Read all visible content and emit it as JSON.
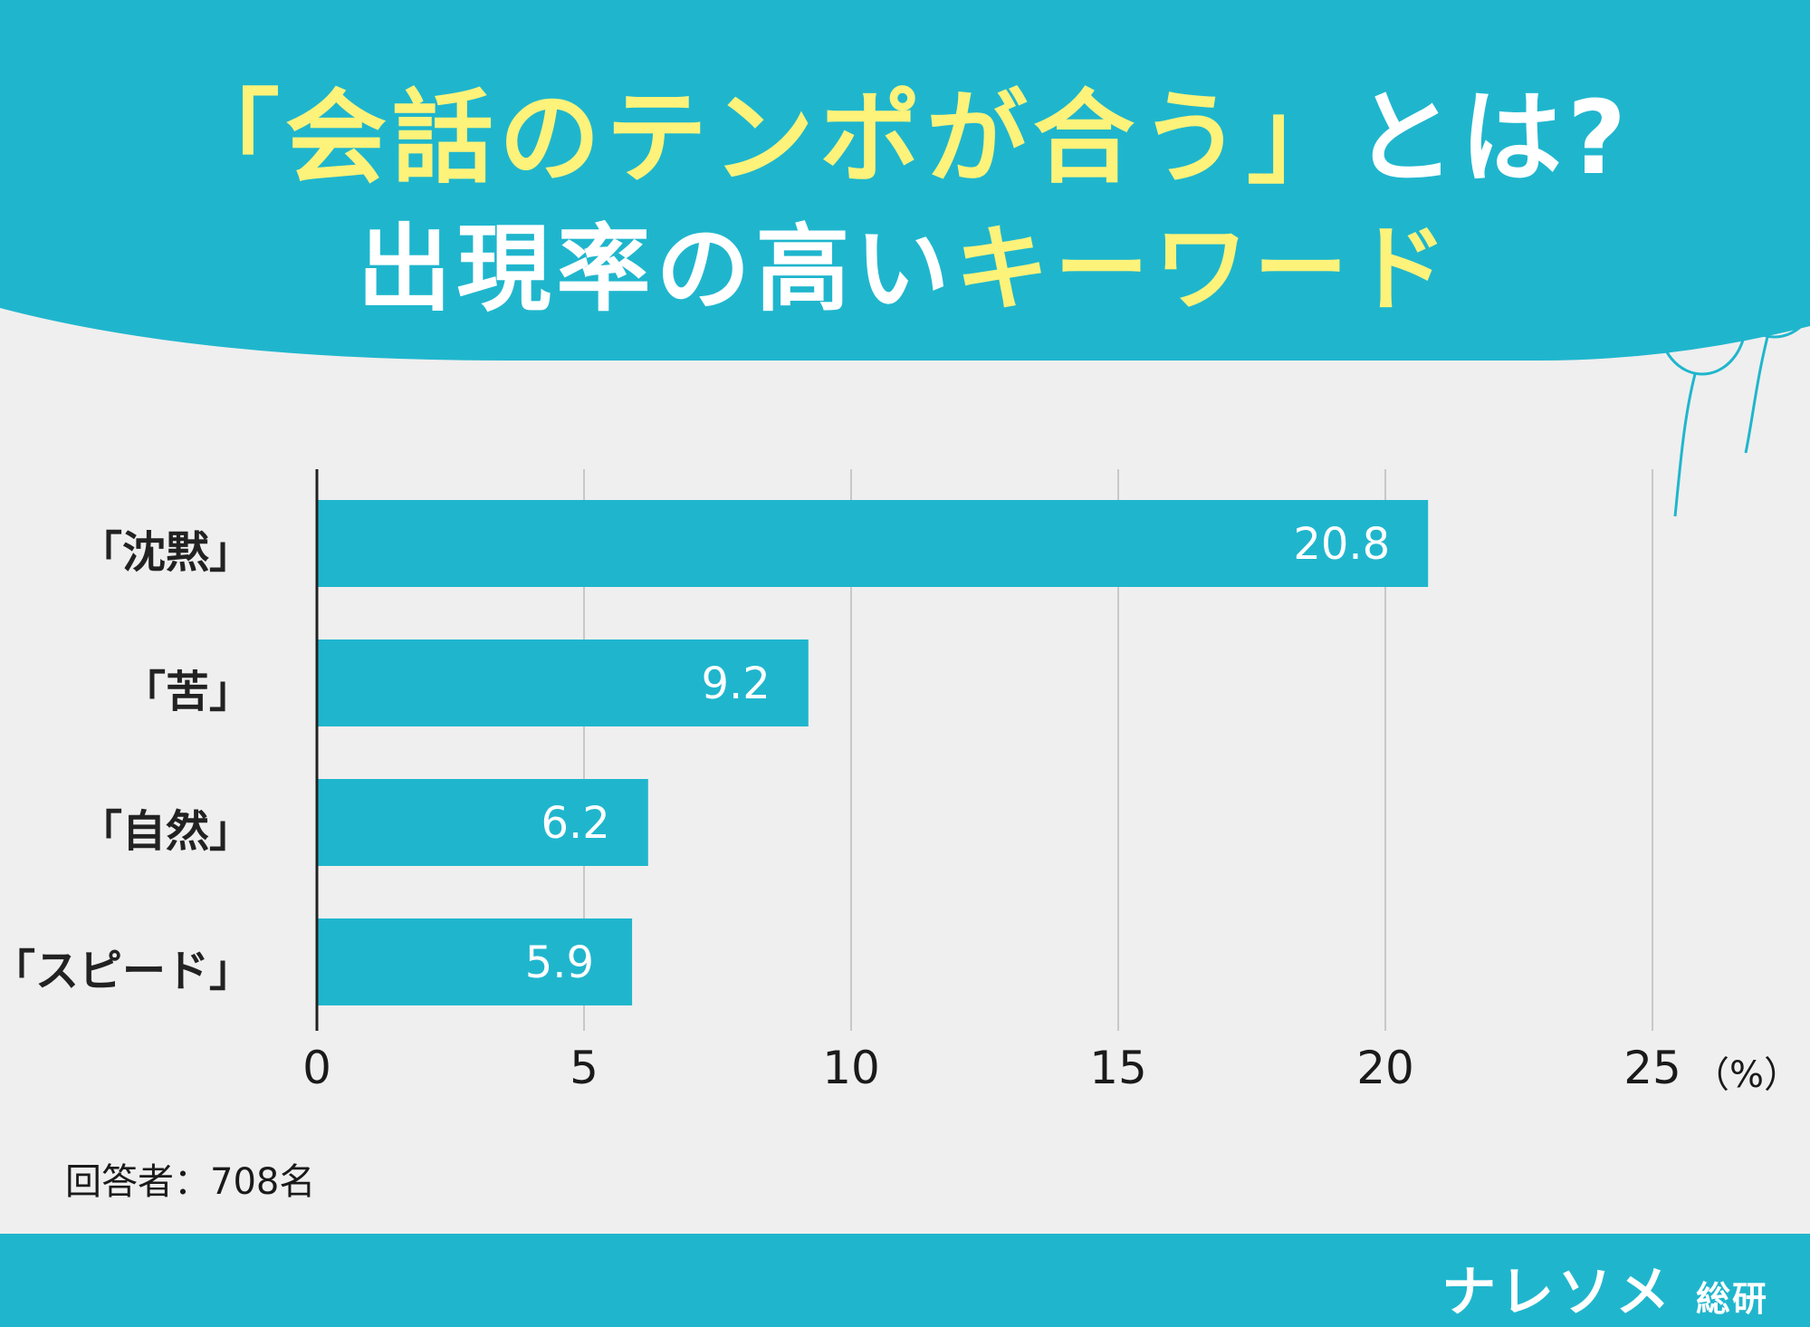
{
  "colors": {
    "header_bg": "#1fb6cd",
    "bar": "#1fb6cd",
    "highlight_text": "#fdf27a",
    "background": "#efefef"
  },
  "title": {
    "line1_highlight": "「会話のテンポが合う」",
    "line1_rest": "とは?",
    "line2_rest": "出現率の高い",
    "line2_highlight": "キーワード"
  },
  "chart_data": {
    "type": "bar",
    "orientation": "horizontal",
    "categories": [
      "「沈黙」",
      "「苦」",
      "「自然」",
      "「スピード」"
    ],
    "values": [
      20.8,
      9.2,
      6.2,
      5.9
    ],
    "value_labels": [
      "20.8",
      "9.2",
      "6.2",
      "5.9"
    ],
    "xlim": [
      0,
      25
    ],
    "xticks": [
      "0",
      "5",
      "10",
      "15",
      "20",
      "25"
    ],
    "x_unit": "（%）",
    "grid": true
  },
  "note": "回答者：708名",
  "brand": {
    "name": "ナレソメ",
    "sub": "総研"
  },
  "decoration": "balloons-icon"
}
